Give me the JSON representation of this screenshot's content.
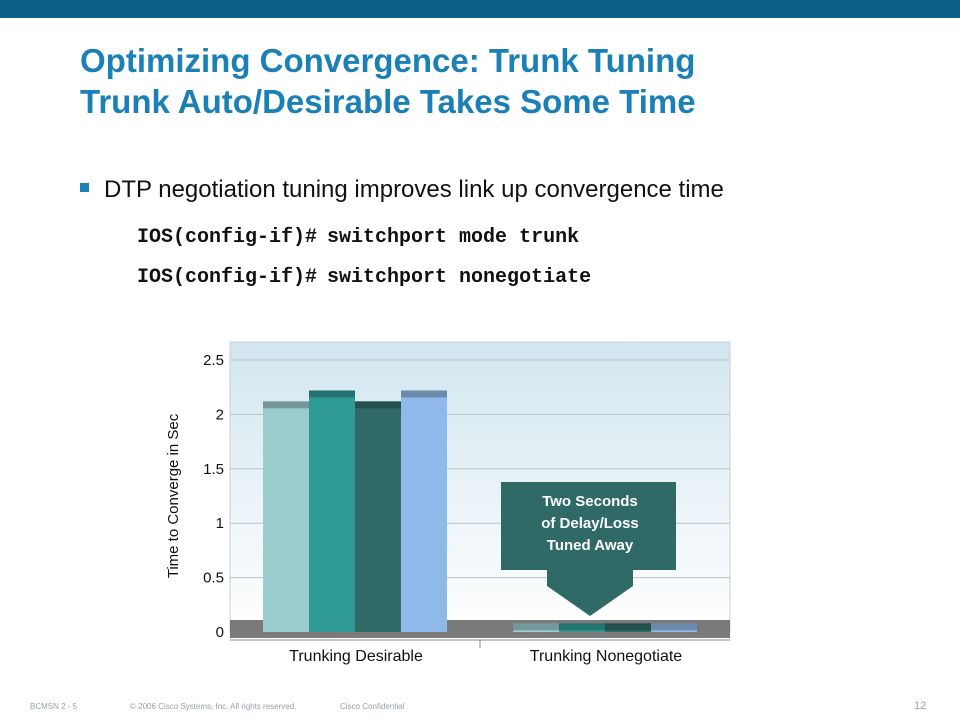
{
  "slide": {
    "title_line1": "Optimizing Convergence: Trunk Tuning",
    "title_line2": "Trunk Auto/Desirable Takes Some Time",
    "bullet": "DTP negotiation tuning improves link up convergence time",
    "code": [
      {
        "prompt": "IOS(config-if)#",
        "command": "switchport mode trunk"
      },
      {
        "prompt": "IOS(config-if)#",
        "command": "switchport nonegotiate"
      }
    ],
    "callout_lines": [
      "Two Seconds",
      "of Delay/Loss",
      "Tuned Away"
    ]
  },
  "footer": {
    "left": "BCMSN 2 - 5",
    "copyright": "© 2006 Cisco Systems, Inc. All rights reserved.",
    "confidential": "Cisco Confidential",
    "page": "12"
  },
  "colors": {
    "brand": "#0e5f86",
    "title": "#1a80b5",
    "callout": "#2f6a67",
    "series": [
      "#9ccdce",
      "#2f9a96",
      "#2f6a67",
      "#8fb9e8"
    ]
  },
  "chart_data": {
    "type": "bar",
    "title": "",
    "ylabel": "Time to Converge in Sec",
    "xlabel": "",
    "ylim": [
      0,
      2.5
    ],
    "yticks": [
      "0",
      "0.5",
      "1",
      "1.5",
      "2",
      "2.5"
    ],
    "grid": true,
    "legend": "none",
    "categories": [
      "Trunking Desirable",
      "Trunking Nonegotiate"
    ],
    "series": [
      {
        "values": [
          2.12,
          0.08
        ]
      },
      {
        "values": [
          2.22,
          0.08
        ]
      },
      {
        "values": [
          2.12,
          0.08
        ]
      },
      {
        "values": [
          2.22,
          0.08
        ]
      }
    ]
  }
}
